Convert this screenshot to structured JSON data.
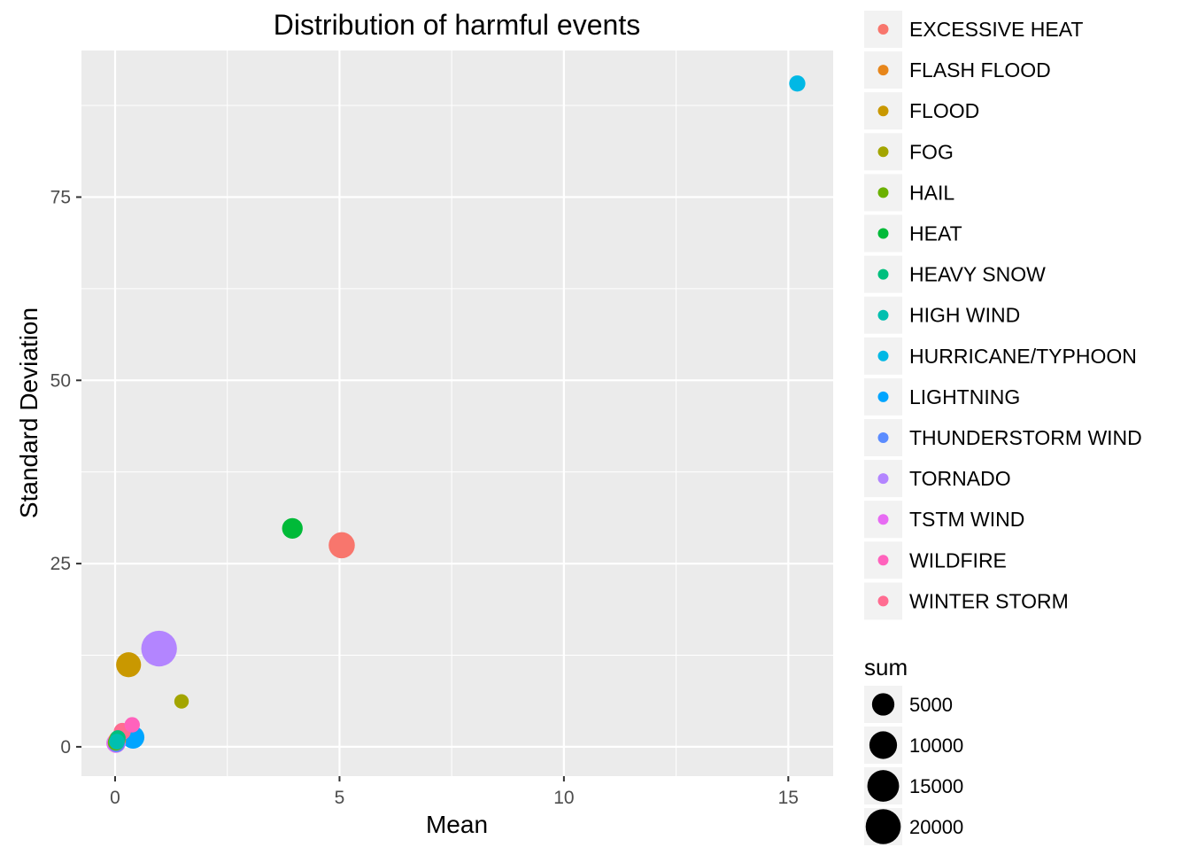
{
  "chart_data": {
    "type": "scatter",
    "title": "Distribution of harmful events",
    "xlabel": "Mean",
    "ylabel": "Standard Deviation",
    "xlim": [
      -0.75,
      16
    ],
    "ylim": [
      -4,
      95
    ],
    "x_ticks": [
      0,
      5,
      10,
      15
    ],
    "y_ticks": [
      0,
      25,
      50,
      75
    ],
    "x_tick_labels": [
      "0",
      "5",
      "10",
      "15"
    ],
    "y_tick_labels": [
      "0",
      "25",
      "50",
      "75"
    ],
    "grid": true,
    "panel_background": "#ebebeb",
    "color_legend": {
      "placement": "right",
      "entries": [
        {
          "label": "EXCESSIVE HEAT",
          "color": "#F8766D"
        },
        {
          "label": "FLASH FLOOD",
          "color": "#E7861B"
        },
        {
          "label": "FLOOD",
          "color": "#C99800"
        },
        {
          "label": "FOG",
          "color": "#A3A500"
        },
        {
          "label": "HAIL",
          "color": "#6BB100"
        },
        {
          "label": "HEAT",
          "color": "#00BA38"
        },
        {
          "label": "HEAVY SNOW",
          "color": "#00BF7D"
        },
        {
          "label": "HIGH WIND",
          "color": "#00BFAF"
        },
        {
          "label": "HURRICANE/TYPHOON",
          "color": "#00B8E5"
        },
        {
          "label": "LIGHTNING",
          "color": "#00A5FF"
        },
        {
          "label": "THUNDERSTORM WIND",
          "color": "#5B8CFF"
        },
        {
          "label": "TORNADO",
          "color": "#B385FF"
        },
        {
          "label": "TSTM WIND",
          "color": "#E76BF3"
        },
        {
          "label": "WILDFIRE",
          "color": "#FF62BC"
        },
        {
          "label": "WINTER STORM",
          "color": "#FF6C91"
        }
      ]
    },
    "size_legend": {
      "title": "sum",
      "entries": [
        {
          "label": "5000",
          "value": 5000
        },
        {
          "label": "10000",
          "value": 10000
        },
        {
          "label": "15000",
          "value": 15000
        },
        {
          "label": "20000",
          "value": 20000
        }
      ]
    },
    "points": [
      {
        "event": "EXCESSIVE HEAT",
        "x": 5.05,
        "y": 27.5,
        "sum": 8400
      },
      {
        "event": "FLASH FLOOD",
        "x": 0.05,
        "y": 1.0,
        "sum": 1800
      },
      {
        "event": "FLOOD",
        "x": 0.3,
        "y": 11.2,
        "sum": 7200
      },
      {
        "event": "FOG",
        "x": 1.48,
        "y": 6.2,
        "sum": 700
      },
      {
        "event": "HAIL",
        "x": 0.02,
        "y": 0.6,
        "sum": 1400
      },
      {
        "event": "HEAT",
        "x": 3.95,
        "y": 29.8,
        "sum": 3700
      },
      {
        "event": "HEAVY SNOW",
        "x": 0.06,
        "y": 1.2,
        "sum": 1100
      },
      {
        "event": "HIGH WIND",
        "x": 0.04,
        "y": 0.7,
        "sum": 1100
      },
      {
        "event": "HURRICANE/TYPHOON",
        "x": 15.2,
        "y": 90.5,
        "sum": 1300
      },
      {
        "event": "LIGHTNING",
        "x": 0.4,
        "y": 1.3,
        "sum": 5200
      },
      {
        "event": "THUNDERSTORM WIND",
        "x": 0.03,
        "y": 0.4,
        "sum": 1500
      },
      {
        "event": "TORNADO",
        "x": 0.98,
        "y": 13.4,
        "sum": 21000
      },
      {
        "event": "TSTM WIND",
        "x": 0.02,
        "y": 0.5,
        "sum": 2900
      },
      {
        "event": "WILDFIRE",
        "x": 0.38,
        "y": 3.0,
        "sum": 1000
      },
      {
        "event": "WINTER STORM",
        "x": 0.16,
        "y": 2.1,
        "sum": 1700
      }
    ]
  }
}
